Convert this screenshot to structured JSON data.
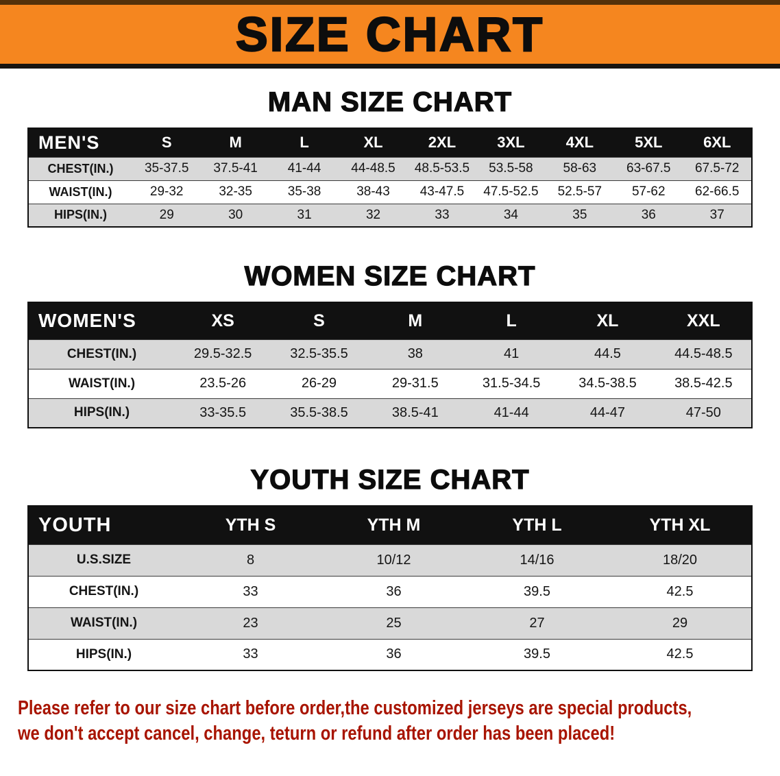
{
  "colors": {
    "accent_orange": "#f5861f",
    "table_header_black": "#111111",
    "stripe_gray": "#d9d9d9",
    "footer_red": "#a81400"
  },
  "banner": {
    "title": "SIZE CHART"
  },
  "sections": [
    {
      "heading": "MAN SIZE CHART",
      "table": {
        "label": "MEN'S",
        "columns": [
          "S",
          "M",
          "L",
          "XL",
          "2XL",
          "3XL",
          "4XL",
          "5XL",
          "6XL"
        ],
        "rows": [
          {
            "label": "CHEST(IN.)",
            "values": [
              "35-37.5",
              "37.5-41",
              "41-44",
              "44-48.5",
              "48.5-53.5",
              "53.5-58",
              "58-63",
              "63-67.5",
              "67.5-72"
            ]
          },
          {
            "label": "WAIST(IN.)",
            "values": [
              "29-32",
              "32-35",
              "35-38",
              "38-43",
              "43-47.5",
              "47.5-52.5",
              "52.5-57",
              "57-62",
              "62-66.5"
            ]
          },
          {
            "label": "HIPS(IN.)",
            "values": [
              "29",
              "30",
              "31",
              "32",
              "33",
              "34",
              "35",
              "36",
              "37"
            ]
          }
        ]
      }
    },
    {
      "heading": "WOMEN SIZE CHART",
      "table": {
        "label": "WOMEN'S",
        "columns": [
          "XS",
          "S",
          "M",
          "L",
          "XL",
          "XXL"
        ],
        "rows": [
          {
            "label": "CHEST(IN.)",
            "values": [
              "29.5-32.5",
              "32.5-35.5",
              "38",
              "41",
              "44.5",
              "44.5-48.5"
            ]
          },
          {
            "label": "WAIST(IN.)",
            "values": [
              "23.5-26",
              "26-29",
              "29-31.5",
              "31.5-34.5",
              "34.5-38.5",
              "38.5-42.5"
            ]
          },
          {
            "label": "HIPS(IN.)",
            "values": [
              "33-35.5",
              "35.5-38.5",
              "38.5-41",
              "41-44",
              "44-47",
              "47-50"
            ]
          }
        ]
      }
    },
    {
      "heading": "YOUTH SIZE CHART",
      "table": {
        "label": "YOUTH",
        "columns": [
          "YTH S",
          "YTH M",
          "YTH L",
          "YTH XL"
        ],
        "rows": [
          {
            "label": "U.S.SIZE",
            "values": [
              "8",
              "10/12",
              "14/16",
              "18/20"
            ]
          },
          {
            "label": "CHEST(IN.)",
            "values": [
              "33",
              "36",
              "39.5",
              "42.5"
            ]
          },
          {
            "label": "WAIST(IN.)",
            "values": [
              "23",
              "25",
              "27",
              "29"
            ]
          },
          {
            "label": "HIPS(IN.)",
            "values": [
              "33",
              "36",
              "39.5",
              "42.5"
            ]
          }
        ]
      }
    }
  ],
  "footer": {
    "lines": [
      "Please refer to our size chart before order,the customized jerseys are special products,",
      "we don't accept cancel, change, teturn or refund after order has been placed!"
    ]
  }
}
